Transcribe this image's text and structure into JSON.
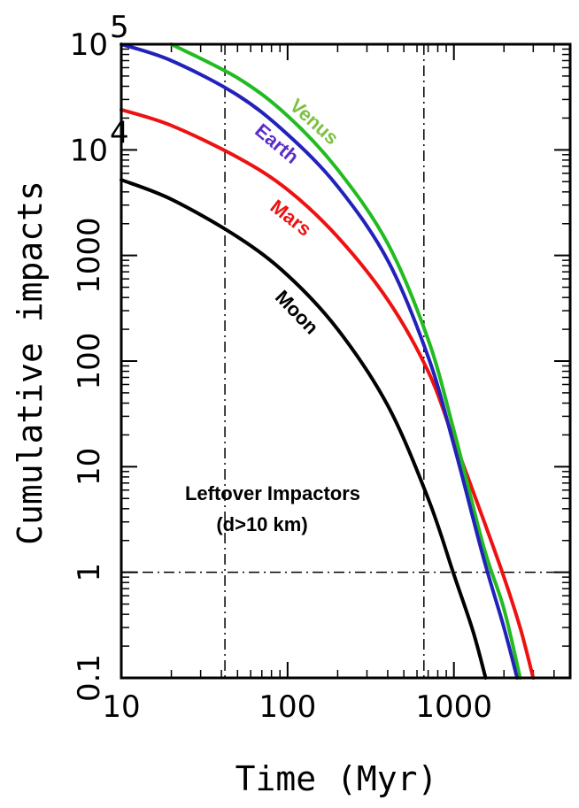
{
  "chart_data": {
    "type": "line",
    "title": "",
    "xlabel": "Time (Myr)",
    "ylabel": "Cumulative impacts",
    "xscale": "log",
    "yscale": "log",
    "xlim": [
      10,
      5000
    ],
    "ylim": [
      0.1,
      100000
    ],
    "x_ticks": [
      {
        "value": 10,
        "label": "10"
      },
      {
        "value": 100,
        "label": "100"
      },
      {
        "value": 1000,
        "label": "1000"
      }
    ],
    "y_ticks": [
      {
        "value": 0.1,
        "label": "0.1"
      },
      {
        "value": 1,
        "label": "1"
      },
      {
        "value": 10,
        "label": "10"
      },
      {
        "value": 100,
        "label": "100"
      },
      {
        "value": 1000,
        "label": "1000"
      },
      {
        "value": 10000,
        "label": "10",
        "exponent": "4"
      },
      {
        "value": 100000,
        "label": "10",
        "exponent": "5"
      }
    ],
    "grid": false,
    "legend": "none",
    "reference_lines": {
      "vertical_x": [
        42,
        660
      ],
      "horizontal_y": [
        1
      ],
      "style": "dash-dot"
    },
    "series": [
      {
        "name": "Venus",
        "color": "#22bb22",
        "label_color": "#7cc142",
        "x": [
          20,
          50,
          100,
          200,
          400,
          700,
          1000,
          1500,
          2000,
          2500
        ],
        "y": [
          100000,
          48000,
          21000,
          6500,
          1300,
          160,
          22,
          1.8,
          0.45,
          0.1
        ]
      },
      {
        "name": "Earth",
        "color": "#2222bb",
        "label_color": "#5a2dc8",
        "x": [
          10,
          20,
          50,
          100,
          200,
          400,
          700,
          1000,
          1500,
          2000,
          2400
        ],
        "y": [
          100000,
          70000,
          33000,
          14000,
          4500,
          900,
          110,
          16,
          1.4,
          0.3,
          0.1
        ]
      },
      {
        "name": "Mars",
        "color": "#ee1111",
        "label_color": "#ee1111",
        "x": [
          10,
          20,
          50,
          100,
          200,
          400,
          700,
          1000,
          1500,
          2000,
          2500,
          3000
        ],
        "y": [
          24000,
          17000,
          8500,
          4200,
          1500,
          380,
          80,
          18,
          3.2,
          0.9,
          0.3,
          0.1
        ]
      },
      {
        "name": "Moon",
        "color": "#000000",
        "label_color": "#000000",
        "x": [
          10,
          20,
          50,
          100,
          200,
          400,
          700,
          1000,
          1300,
          1550
        ],
        "y": [
          5200,
          3400,
          1500,
          650,
          200,
          38,
          5,
          0.95,
          0.28,
          0.1
        ]
      }
    ],
    "annotations": [
      "Leftover Impactors",
      "(d>10 km)"
    ]
  }
}
